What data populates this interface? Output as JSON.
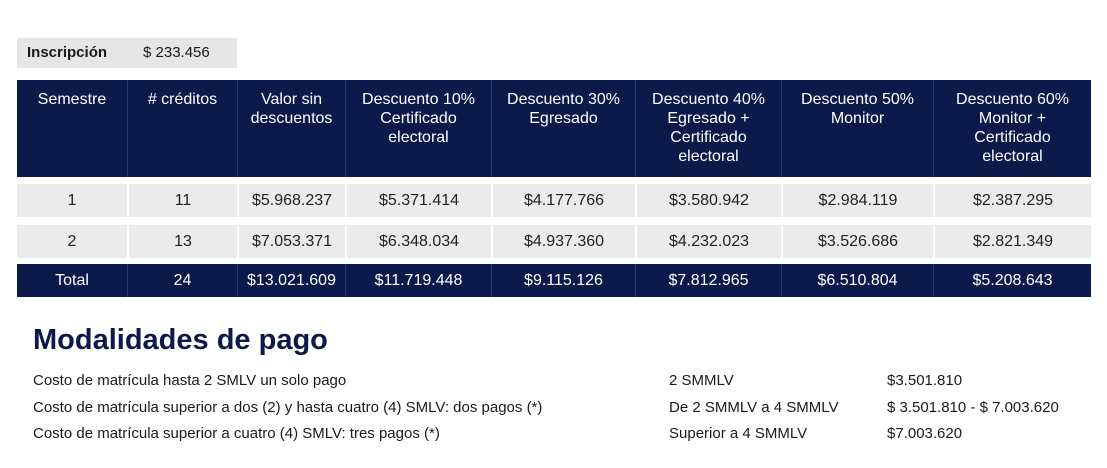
{
  "inscripcion": {
    "label": "Inscripción",
    "value": "$ 233.456"
  },
  "table": {
    "header": [
      "Semestre",
      "# créditos",
      "Valor sin descuentos",
      "Descuento 10% Certificado electoral",
      "Descuento 30% Egresado",
      "Descuento 40% Egresado + Certificado electoral",
      "Descuento 50% Monitor",
      "Descuento 60% Monitor + Certificado electoral"
    ],
    "rows": [
      [
        "1",
        "11",
        "$5.968.237",
        "$5.371.414",
        "$4.177.766",
        "$3.580.942",
        "$2.984.119",
        "$2.387.295"
      ],
      [
        "2",
        "13",
        "$7.053.371",
        "$6.348.034",
        "$4.937.360",
        "$4.232.023",
        "$3.526.686",
        "$2.821.349"
      ]
    ],
    "total": [
      "Total",
      "24",
      "$13.021.609",
      "$11.719.448",
      "$9.115.126",
      "$7.812.965",
      "$6.510.804",
      "$5.208.643"
    ]
  },
  "payment": {
    "title": "Modalidades de pago",
    "rows": [
      [
        "Costo de matrícula hasta 2 SMLV un solo pago",
        "2 SMMLV",
        "$3.501.810"
      ],
      [
        "Costo de matrícula superior a dos (2) y hasta cuatro (4) SMLV: dos pagos (*)",
        "De 2 SMMLV a 4 SMMLV",
        "$ 3.501.810 - $ 7.003.620"
      ],
      [
        "Costo de matrícula superior a cuatro (4) SMLV: tres pagos (*)",
        "Superior a 4 SMMLV",
        "$7.003.620"
      ]
    ]
  }
}
